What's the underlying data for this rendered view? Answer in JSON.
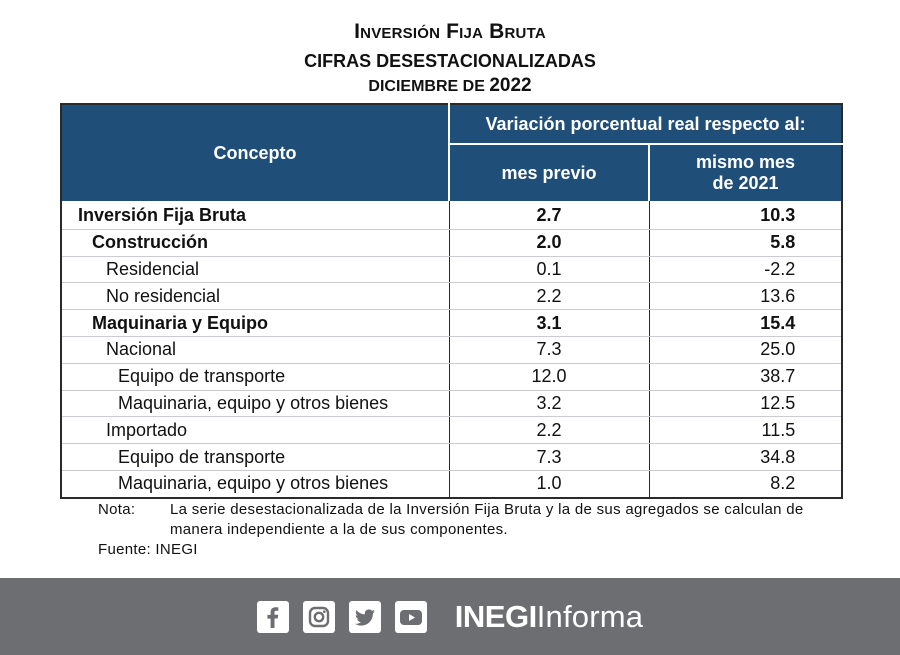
{
  "title": {
    "line1": "Inversión Fija Bruta",
    "line2": "CIFRAS DESESTACIONALIZADAS",
    "line3_month": "DICIEMBRE DE",
    "line3_year": "2022"
  },
  "table": {
    "header": {
      "concept": "Concepto",
      "group": "Variación porcentual real respecto al:",
      "col1": "mes previo",
      "col2_l1": "mismo mes",
      "col2_l2": "de 2021"
    },
    "rows": [
      {
        "label": "Inversión Fija Bruta",
        "mes_previo": "2.7",
        "mismo_mes": "10.3"
      },
      {
        "label": "Construcción",
        "mes_previo": "2.0",
        "mismo_mes": "5.8"
      },
      {
        "label": "Residencial",
        "mes_previo": "0.1",
        "mismo_mes": "-2.2"
      },
      {
        "label": "No residencial",
        "mes_previo": "2.2",
        "mismo_mes": "13.6"
      },
      {
        "label": "Maquinaria y Equipo",
        "mes_previo": "3.1",
        "mismo_mes": "15.4"
      },
      {
        "label": "Nacional",
        "mes_previo": "7.3",
        "mismo_mes": "25.0"
      },
      {
        "label": "Equipo de transporte",
        "mes_previo": "12.0",
        "mismo_mes": "38.7"
      },
      {
        "label": "Maquinaria, equipo y otros bienes",
        "mes_previo": "3.2",
        "mismo_mes": "12.5"
      },
      {
        "label": "Importado",
        "mes_previo": "2.2",
        "mismo_mes": "11.5"
      },
      {
        "label": "Equipo de transporte",
        "mes_previo": "7.3",
        "mismo_mes": "34.8"
      },
      {
        "label": "Maquinaria, equipo y otros bienes",
        "mes_previo": "1.0",
        "mismo_mes": "8.2"
      }
    ]
  },
  "notes": {
    "nota_label": "Nota:",
    "nota_text": "La serie desestacionalizada de la Inversión Fija Bruta y la de sus agregados se calculan de manera independiente a la de sus componentes.",
    "fuente": "Fuente: INEGI"
  },
  "footer": {
    "brand_bold": "INEGI",
    "brand_light": "Informa",
    "icons": [
      "facebook-icon",
      "instagram-icon",
      "twitter-icon",
      "youtube-icon"
    ],
    "background": "#6d6e71"
  },
  "colors": {
    "header_blue": "#1f4e79"
  }
}
